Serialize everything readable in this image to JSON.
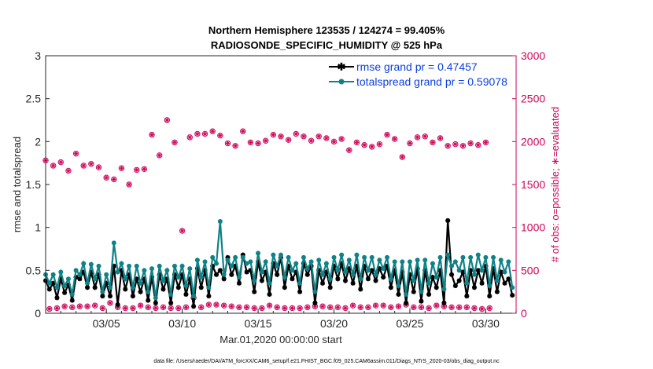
{
  "chart_data": {
    "type": "line",
    "title": "Northern Hemisphere 123535 / 124274 = 99.405%",
    "subtitle": "RADIOSONDE_SPECIFIC_HUMIDITY @ 525 hPa",
    "xlabel": "Mar.01,2020 00:00:00 start",
    "ylabel": "rmse and totalspread",
    "ylabel_right": "# of obs: o=possible; ∗=evaluated",
    "xlim_days": [
      0,
      31
    ],
    "ylim": [
      0,
      3
    ],
    "ylim_right": [
      0,
      3000
    ],
    "grid": false,
    "legend_placement": "top-right",
    "x_step_hours": 6,
    "x_ticks": [
      {
        "day": 4,
        "label": "03/05"
      },
      {
        "day": 9,
        "label": "03/10"
      },
      {
        "day": 14,
        "label": "03/15"
      },
      {
        "day": 19,
        "label": "03/20"
      },
      {
        "day": 24,
        "label": "03/25"
      },
      {
        "day": 29,
        "label": "03/30"
      }
    ],
    "y_ticks": [
      "0",
      "0.5",
      "1",
      "1.5",
      "2",
      "2.5",
      "3"
    ],
    "y_ticks_right": [
      "0",
      "500",
      "1000",
      "1500",
      "2000",
      "2500",
      "3000"
    ],
    "colors": {
      "rmse": "#000000",
      "totalspread": "#0f8287",
      "obs": "#d0045a",
      "legend_text": "#0b3fe0"
    },
    "series": [
      {
        "name": "rmse grand pr = 0.47457",
        "key": "rmse",
        "values": [
          0.38,
          0.28,
          0.35,
          0.18,
          0.4,
          0.24,
          0.33,
          0.15,
          0.42,
          0.4,
          0.48,
          0.3,
          0.48,
          0.3,
          0.45,
          0.2,
          0.35,
          0.2,
          0.55,
          0.1,
          0.5,
          0.28,
          0.45,
          0.2,
          0.4,
          0.25,
          0.4,
          0.15,
          0.42,
          0.12,
          0.45,
          0.28,
          0.4,
          0.12,
          0.45,
          0.3,
          0.45,
          0.22,
          0.4,
          0.08,
          0.52,
          0.3,
          0.5,
          0.2,
          0.55,
          0.45,
          0.5,
          0.4,
          0.65,
          0.45,
          0.55,
          0.35,
          0.68,
          0.48,
          0.5,
          0.25,
          0.6,
          0.38,
          0.48,
          0.22,
          0.58,
          0.45,
          0.65,
          0.3,
          0.55,
          0.4,
          0.48,
          0.25,
          0.58,
          0.45,
          0.55,
          0.12,
          0.5,
          0.35,
          0.48,
          0.3,
          0.55,
          0.4,
          0.58,
          0.38,
          0.52,
          0.35,
          0.55,
          0.28,
          0.55,
          0.4,
          0.5,
          0.38,
          0.52,
          0.42,
          0.55,
          0.3,
          0.5,
          0.22,
          0.48,
          0.12,
          0.45,
          0.25,
          0.52,
          0.14,
          0.5,
          0.22,
          0.42,
          0.3,
          0.5,
          0.12,
          1.08,
          0.45,
          0.32,
          0.38,
          0.48,
          0.2,
          0.5,
          0.3,
          0.5,
          0.35,
          0.55,
          0.2,
          0.52,
          0.25,
          0.48,
          0.35,
          0.4,
          0.21
        ]
      },
      {
        "name": "totalspread grand pr = 0.59078",
        "key": "totalspread",
        "values": [
          0.45,
          0.35,
          0.45,
          0.3,
          0.48,
          0.32,
          0.4,
          0.22,
          0.5,
          0.45,
          0.58,
          0.35,
          0.57,
          0.4,
          0.55,
          0.25,
          0.45,
          0.3,
          0.82,
          0.48,
          0.58,
          0.4,
          0.55,
          0.3,
          0.55,
          0.35,
          0.5,
          0.25,
          0.52,
          0.18,
          0.55,
          0.38,
          0.5,
          0.22,
          0.55,
          0.42,
          0.55,
          0.32,
          0.52,
          0.2,
          0.62,
          0.42,
          0.6,
          0.3,
          0.65,
          0.58,
          1.07,
          0.45,
          0.62,
          0.55,
          0.65,
          0.42,
          0.65,
          0.58,
          0.6,
          0.38,
          0.7,
          0.48,
          0.6,
          0.35,
          0.68,
          0.55,
          0.68,
          0.42,
          0.65,
          0.5,
          0.58,
          0.35,
          0.65,
          0.52,
          0.6,
          0.25,
          0.62,
          0.45,
          0.58,
          0.4,
          0.65,
          0.5,
          0.68,
          0.48,
          0.62,
          0.45,
          0.68,
          0.4,
          0.65,
          0.5,
          0.65,
          0.45,
          0.62,
          0.52,
          0.65,
          0.4,
          0.6,
          0.32,
          0.6,
          0.22,
          0.6,
          0.38,
          0.62,
          0.25,
          0.62,
          0.35,
          0.58,
          0.42,
          0.65,
          0.28,
          0.68,
          0.55,
          0.6,
          0.5,
          0.65,
          0.35,
          0.65,
          0.45,
          0.68,
          0.5,
          0.65,
          0.32,
          0.65,
          0.38,
          0.62,
          0.48,
          0.6,
          0.3
        ]
      },
      {
        "name": "obs possible/evaluated",
        "key": "obs",
        "axis": "right",
        "values": [
          1780,
          50,
          1720,
          60,
          1760,
          80,
          1660,
          70,
          1860,
          80,
          1720,
          80,
          1740,
          90,
          1700,
          60,
          1580,
          120,
          1560,
          70,
          1690,
          60,
          1500,
          60,
          1670,
          90,
          1680,
          70,
          2080,
          60,
          1840,
          70,
          2250,
          60,
          1990,
          60,
          960,
          70,
          2050,
          180,
          2090,
          70,
          2090,
          100,
          2120,
          100,
          2070,
          90,
          1980,
          80,
          1950,
          70,
          2120,
          70,
          1990,
          60,
          1980,
          60,
          2010,
          90,
          2080,
          70,
          2060,
          60,
          2020,
          60,
          2090,
          60,
          2060,
          70,
          2010,
          80,
          2060,
          80,
          2040,
          70,
          2000,
          70,
          2030,
          60,
          1900,
          90,
          1990,
          70,
          1960,
          70,
          1940,
          90,
          1970,
          90,
          2080,
          70,
          2030,
          80,
          1820,
          100,
          1980,
          70,
          2050,
          70,
          2060,
          60,
          1990,
          90,
          2040,
          80,
          1950,
          70,
          1970,
          70,
          1950,
          70,
          1980,
          60,
          1960,
          50,
          1990,
          60
        ]
      }
    ]
  },
  "footer": {
    "data_file": "data file: /Users/raeder/DAI/ATM_forcXX/CAM6_setup/f.e21.FHIST_BGC.f09_025.CAM6assim.011/Diags_NTrS_2020-03/obs_diag_output.nc"
  }
}
